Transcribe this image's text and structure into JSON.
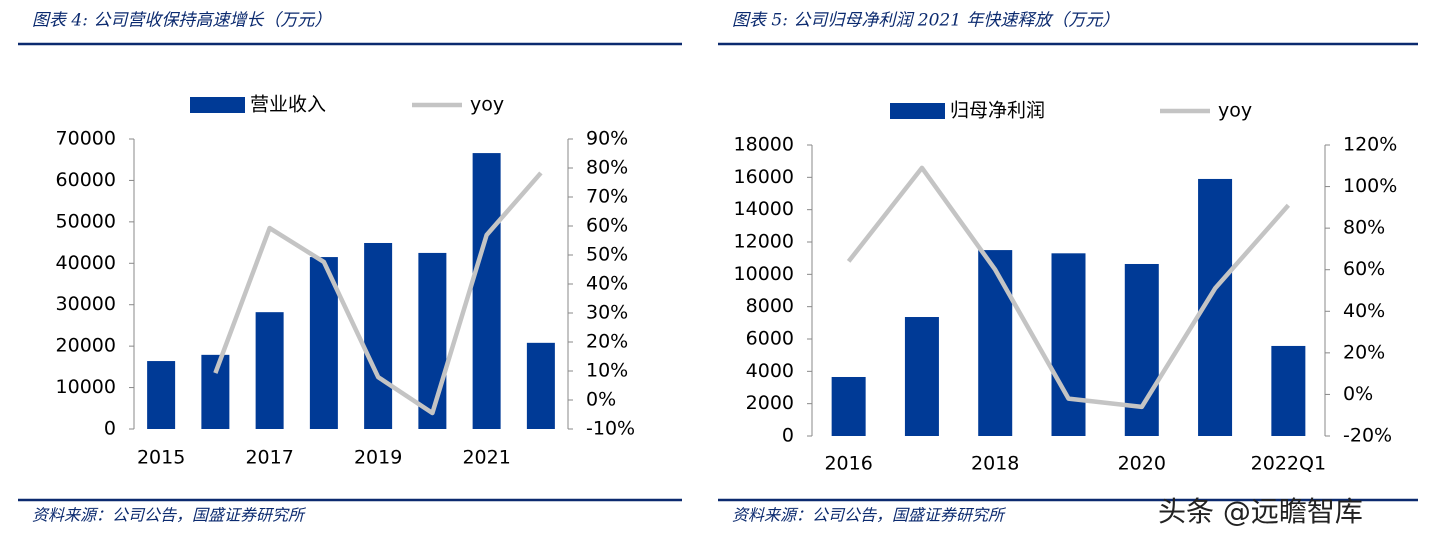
{
  "chart_data": [
    {
      "type": "bar",
      "title": "图表 4: 公司营收保持高速增长（万元）",
      "source": "资料来源：公司公告，国盛证券研究所",
      "categories": [
        "2015",
        null,
        "2017",
        null,
        "2019",
        null,
        "2021",
        null
      ],
      "series": [
        {
          "name": "营业收入",
          "color": "#003a96",
          "values": [
            16400,
            17900,
            28200,
            41500,
            44900,
            42500,
            66600,
            20800
          ]
        },
        {
          "name": "yoy",
          "type": "line",
          "axis": "y2",
          "color": "#c4c4c4",
          "values": [
            null,
            9.3,
            59.3,
            47.6,
            7.9,
            -4.5,
            56.9,
            78.3
          ]
        }
      ],
      "ylim": [
        0,
        70000
      ],
      "yticks": [
        0,
        10000,
        20000,
        30000,
        40000,
        50000,
        60000,
        70000
      ],
      "y2lim": [
        -10,
        90
      ],
      "y2ticks": [
        {
          "value": -10,
          "label": "-10%"
        },
        {
          "value": 0,
          "label": "0%"
        },
        {
          "value": 10,
          "label": "10%"
        },
        {
          "value": 20,
          "label": "20%"
        },
        {
          "value": 30,
          "label": "30%"
        },
        {
          "value": 40,
          "label": "40%"
        },
        {
          "value": 50,
          "label": "50%"
        },
        {
          "value": 60,
          "label": "60%"
        },
        {
          "value": 70,
          "label": "70%"
        },
        {
          "value": 80,
          "label": "80%"
        },
        {
          "value": 90,
          "label": "90%"
        }
      ]
    },
    {
      "type": "bar",
      "title": "图表 5: 公司归母净利润 2021 年快速释放（万元）",
      "source": "资料来源：公司公告，国盛证券研究所",
      "categories": [
        "2016",
        null,
        "2018",
        null,
        "2020",
        null,
        "2022Q1"
      ],
      "series": [
        {
          "name": "归母净利润",
          "color": "#003a96",
          "values": [
            3650,
            7360,
            11500,
            11300,
            10640,
            15900,
            5570
          ]
        },
        {
          "name": "yoy",
          "type": "line",
          "axis": "y2",
          "color": "#c4c4c4",
          "values": [
            64,
            109,
            60,
            -2,
            -6,
            51,
            91
          ]
        }
      ],
      "ylim": [
        0,
        18000
      ],
      "yticks": [
        0,
        2000,
        4000,
        6000,
        8000,
        10000,
        12000,
        14000,
        16000,
        18000
      ],
      "y2lim": [
        -20,
        120
      ],
      "y2ticks": [
        {
          "value": -20,
          "label": "-20%"
        },
        {
          "value": 0,
          "label": "0%"
        },
        {
          "value": 20,
          "label": "20%"
        },
        {
          "value": 40,
          "label": "40%"
        },
        {
          "value": 60,
          "label": "60%"
        },
        {
          "value": 80,
          "label": "80%"
        },
        {
          "value": 100,
          "label": "100%"
        },
        {
          "value": 120,
          "label": "120%"
        }
      ]
    }
  ],
  "watermark": "头条 @远瞻智库"
}
